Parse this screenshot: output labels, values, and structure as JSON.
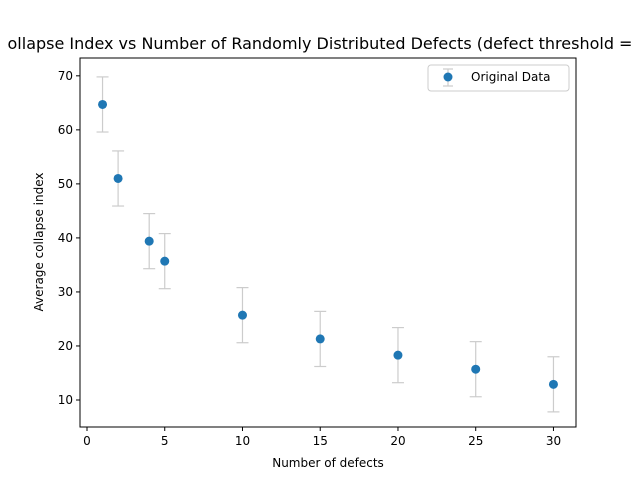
{
  "chart_data": {
    "type": "scatter",
    "title": "ollapse Index vs Number of Randomly Distributed Defects (defect threshold =",
    "xlabel": "Number of defects",
    "ylabel": "Average collapse index",
    "xlim": [
      -0.45,
      31.45
    ],
    "ylim": [
      5.0,
      73.3
    ],
    "xticks": [
      0,
      5,
      10,
      15,
      20,
      25,
      30
    ],
    "yticks": [
      10,
      20,
      30,
      40,
      50,
      60,
      70
    ],
    "grid": false,
    "legend_position": "top-right",
    "series": [
      {
        "name": "Original Data",
        "x": [
          1,
          2,
          4,
          5,
          10,
          15,
          20,
          25,
          30
        ],
        "y": [
          64.7,
          51.0,
          39.4,
          35.7,
          25.7,
          21.3,
          18.3,
          15.7,
          12.9
        ],
        "yerr": [
          5.1,
          5.1,
          5.1,
          5.1,
          5.1,
          5.1,
          5.1,
          5.1,
          5.1
        ]
      }
    ]
  },
  "colors": {
    "marker": "#1f77b4",
    "errorbar": "#cccccc",
    "axis": "#000000"
  }
}
